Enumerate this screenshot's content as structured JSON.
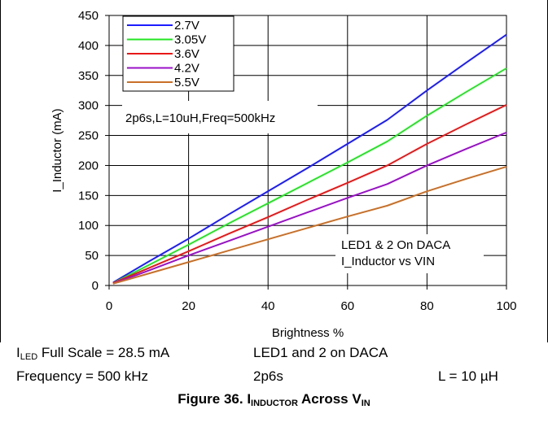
{
  "chart_data": {
    "type": "line",
    "xlabel": "Brightness %",
    "ylabel": "I_Inductor (mA)",
    "xlim": [
      0,
      100
    ],
    "ylim": [
      0,
      450
    ],
    "xticks": [
      "0",
      "20",
      "40",
      "60",
      "80",
      "100"
    ],
    "yticks": [
      "0",
      "50",
      "100",
      "150",
      "200",
      "250",
      "300",
      "350",
      "400",
      "450"
    ],
    "grid": true,
    "legend_position": "top-left",
    "annotations": [
      "2p6s,L=10uH,Freq=500kHz",
      "LED1 & 2 On DACA",
      "I_Inductor vs VIN"
    ],
    "x": [
      1,
      10,
      20,
      30,
      40,
      50,
      60,
      70,
      80,
      90,
      100
    ],
    "series": [
      {
        "name": "2.7V",
        "color": "#1c1cff",
        "values": [
          5,
          40,
          78,
          118,
          157,
          196,
          236,
          276,
          325,
          372,
          418
        ]
      },
      {
        "name": "3.05V",
        "color": "#22e622",
        "values": [
          4,
          34,
          68,
          103,
          137,
          171,
          205,
          240,
          283,
          323,
          362
        ]
      },
      {
        "name": "3.6V",
        "color": "#e81818",
        "values": [
          4,
          29,
          57,
          86,
          114,
          143,
          171,
          200,
          236,
          269,
          301
        ]
      },
      {
        "name": "4.2V",
        "color": "#9a10c8",
        "values": [
          3,
          25,
          50,
          74,
          98,
          122,
          146,
          169,
          200,
          228,
          255
        ]
      },
      {
        "name": "5.5V",
        "color": "#c87028",
        "values": [
          3,
          20,
          39,
          58,
          77,
          96,
          115,
          133,
          157,
          178,
          198
        ]
      }
    ]
  },
  "info": {
    "iled_main": "I",
    "iled_sub": "LED",
    "iled_rest": " Full Scale = 28.5 mA",
    "led_daca": "LED1 and 2 on DACA",
    "frequency": "Frequency = 500 kHz",
    "config": "2p6s",
    "inductance": "L = 10 µH"
  },
  "caption": {
    "prefix": "Figure 36. I",
    "sub1": "INDUCTOR",
    "middle": " Across V",
    "sub2": "IN"
  }
}
